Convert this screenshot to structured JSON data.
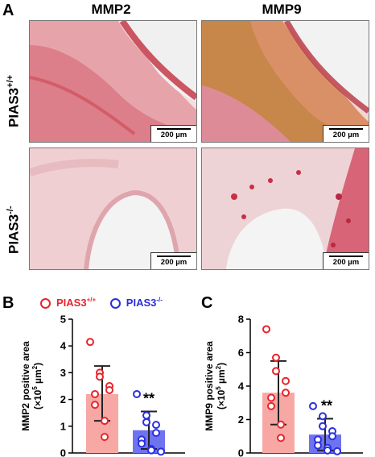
{
  "figure": {
    "panel_labels": {
      "a": "A",
      "b": "B",
      "c": "C"
    },
    "columns": [
      "MMP2",
      "MMP9"
    ],
    "rows": [
      {
        "base": "PIAS3",
        "sup": "+/+",
        "color": "#e8242d"
      },
      {
        "base": "PIAS3",
        "sup": "-/-",
        "color": "#2a2ee0"
      }
    ],
    "scale_bar": "200 µm",
    "legend": [
      {
        "base": "PIAS3",
        "sup": "+/+",
        "color": "#e8242d"
      },
      {
        "base": "PIAS3",
        "sup": "-/-",
        "color": "#2a2ee0"
      }
    ]
  },
  "chart_data": [
    {
      "type": "bar",
      "ylabel_line1": "MMP2 positive area",
      "ylabel_line2": "(×10",
      "ylabel_sup1": "5",
      "ylabel_mid": " µm",
      "ylabel_sup2": "2",
      "ylabel_end": ")",
      "ylim": [
        0,
        5
      ],
      "yticks": [
        "0",
        "1",
        "2",
        "3",
        "4",
        "5"
      ],
      "significance": "**",
      "series": [
        {
          "mean": 2.2,
          "sd_low": 1.2,
          "sd_high": 3.25,
          "points": [
            4.15,
            3.0,
            2.85,
            2.5,
            2.35,
            2.2,
            1.8,
            1.2,
            0.6
          ],
          "bar_color": "#f7a8a4",
          "point_color": "#e8242d"
        },
        {
          "mean": 0.85,
          "sd_low": 0.15,
          "sd_high": 1.55,
          "points": [
            2.2,
            1.4,
            1.15,
            1.05,
            0.75,
            0.5,
            0.35,
            0.15,
            0.1,
            0.05
          ],
          "bar_color": "#6e73f0",
          "point_color": "#2a2ee0"
        }
      ]
    },
    {
      "type": "bar",
      "ylabel_line1": "MMP9 positive area",
      "ylabel_line2": "(×10",
      "ylabel_sup1": "5",
      "ylabel_mid": " µm",
      "ylabel_sup2": "2",
      "ylabel_end": ")",
      "ylim": [
        0,
        8
      ],
      "yticks": [
        "0",
        "2",
        "4",
        "6",
        "8"
      ],
      "significance": "**",
      "series": [
        {
          "mean": 3.6,
          "sd_low": 1.7,
          "sd_high": 5.5,
          "points": [
            7.4,
            5.7,
            4.9,
            4.3,
            3.6,
            3.3,
            2.8,
            1.7,
            0.9
          ],
          "bar_color": "#f7a8a4",
          "point_color": "#e8242d"
        },
        {
          "mean": 1.1,
          "sd_low": 0.15,
          "sd_high": 2.05,
          "points": [
            2.8,
            2.2,
            1.6,
            1.3,
            1.0,
            0.8,
            0.45,
            0.3,
            0.15,
            0.1
          ],
          "bar_color": "#6e73f0",
          "point_color": "#2a2ee0"
        }
      ]
    }
  ]
}
